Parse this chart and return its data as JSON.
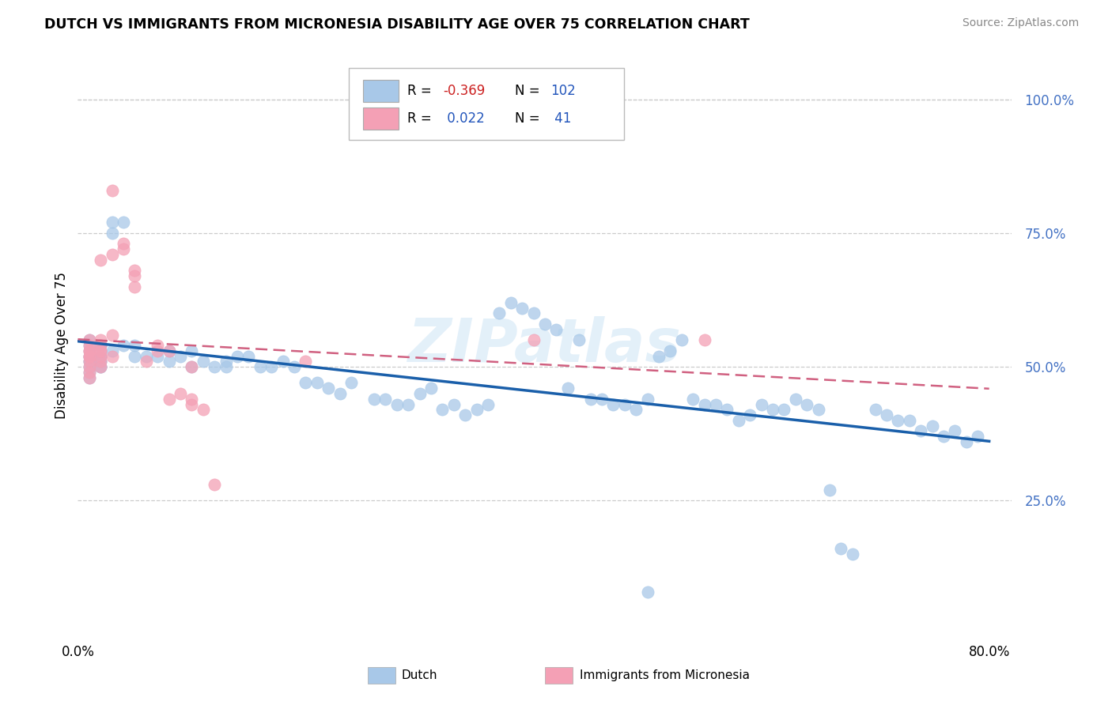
{
  "title": "DUTCH VS IMMIGRANTS FROM MICRONESIA DISABILITY AGE OVER 75 CORRELATION CHART",
  "source": "Source: ZipAtlas.com",
  "ylabel": "Disability Age Over 75",
  "legend_label1": "Dutch",
  "legend_label2": "Immigrants from Micronesia",
  "R1": -0.369,
  "N1": 102,
  "R2": 0.022,
  "N2": 41,
  "blue_color": "#a8c8e8",
  "blue_line_color": "#1a5faa",
  "pink_color": "#f4a0b5",
  "pink_line_color": "#d06080",
  "watermark": "ZIPatlas",
  "dutch_x": [
    0.01,
    0.01,
    0.01,
    0.01,
    0.01,
    0.01,
    0.01,
    0.01,
    0.01,
    0.01,
    0.02,
    0.02,
    0.02,
    0.02,
    0.02,
    0.02,
    0.02,
    0.02,
    0.02,
    0.03,
    0.03,
    0.03,
    0.04,
    0.04,
    0.05,
    0.05,
    0.06,
    0.07,
    0.08,
    0.08,
    0.09,
    0.1,
    0.1,
    0.11,
    0.12,
    0.13,
    0.13,
    0.14,
    0.15,
    0.16,
    0.17,
    0.18,
    0.19,
    0.2,
    0.21,
    0.22,
    0.23,
    0.24,
    0.26,
    0.27,
    0.28,
    0.29,
    0.3,
    0.31,
    0.32,
    0.33,
    0.34,
    0.35,
    0.36,
    0.37,
    0.38,
    0.39,
    0.4,
    0.41,
    0.42,
    0.43,
    0.44,
    0.45,
    0.46,
    0.47,
    0.48,
    0.49,
    0.5,
    0.51,
    0.52,
    0.53,
    0.54,
    0.55,
    0.56,
    0.57,
    0.58,
    0.59,
    0.6,
    0.61,
    0.62,
    0.63,
    0.64,
    0.65,
    0.66,
    0.67,
    0.68,
    0.7,
    0.71,
    0.72,
    0.73,
    0.74,
    0.75,
    0.76,
    0.77,
    0.78,
    0.79,
    0.5
  ],
  "dutch_y": [
    0.54,
    0.52,
    0.51,
    0.5,
    0.49,
    0.53,
    0.55,
    0.48,
    0.51,
    0.52,
    0.52,
    0.54,
    0.5,
    0.51,
    0.53,
    0.51,
    0.52,
    0.54,
    0.5,
    0.53,
    0.77,
    0.75,
    0.54,
    0.77,
    0.52,
    0.54,
    0.52,
    0.52,
    0.51,
    0.53,
    0.52,
    0.5,
    0.53,
    0.51,
    0.5,
    0.51,
    0.5,
    0.52,
    0.52,
    0.5,
    0.5,
    0.51,
    0.5,
    0.47,
    0.47,
    0.46,
    0.45,
    0.47,
    0.44,
    0.44,
    0.43,
    0.43,
    0.45,
    0.46,
    0.42,
    0.43,
    0.41,
    0.42,
    0.43,
    0.6,
    0.62,
    0.61,
    0.6,
    0.58,
    0.57,
    0.46,
    0.55,
    0.44,
    0.44,
    0.43,
    0.43,
    0.42,
    0.44,
    0.52,
    0.53,
    0.55,
    0.44,
    0.43,
    0.43,
    0.42,
    0.4,
    0.41,
    0.43,
    0.42,
    0.42,
    0.44,
    0.43,
    0.42,
    0.27,
    0.16,
    0.15,
    0.42,
    0.41,
    0.4,
    0.4,
    0.38,
    0.39,
    0.37,
    0.38,
    0.36,
    0.37,
    0.08
  ],
  "micro_x": [
    0.01,
    0.01,
    0.01,
    0.01,
    0.01,
    0.01,
    0.01,
    0.01,
    0.01,
    0.01,
    0.02,
    0.02,
    0.02,
    0.02,
    0.02,
    0.02,
    0.02,
    0.03,
    0.03,
    0.03,
    0.04,
    0.04,
    0.03,
    0.02,
    0.05,
    0.05,
    0.05,
    0.06,
    0.07,
    0.07,
    0.08,
    0.1,
    0.08,
    0.09,
    0.1,
    0.1,
    0.11,
    0.12,
    0.2,
    0.4,
    0.55
  ],
  "micro_y": [
    0.55,
    0.52,
    0.5,
    0.53,
    0.53,
    0.54,
    0.51,
    0.52,
    0.49,
    0.48,
    0.5,
    0.51,
    0.52,
    0.54,
    0.53,
    0.55,
    0.53,
    0.83,
    0.56,
    0.52,
    0.72,
    0.73,
    0.71,
    0.7,
    0.65,
    0.67,
    0.68,
    0.51,
    0.53,
    0.54,
    0.53,
    0.5,
    0.44,
    0.45,
    0.43,
    0.44,
    0.42,
    0.28,
    0.51,
    0.55,
    0.55
  ],
  "xlim_min": 0.0,
  "xlim_max": 0.82,
  "ylim_min": 0.0,
  "ylim_max": 1.08,
  "yticks": [
    0.25,
    0.5,
    0.75,
    1.0
  ],
  "ytick_labels": [
    "25.0%",
    "50.0%",
    "75.0%",
    "100.0%"
  ],
  "xtick_labels": [
    "0.0%",
    "",
    "",
    "",
    "80.0%"
  ]
}
